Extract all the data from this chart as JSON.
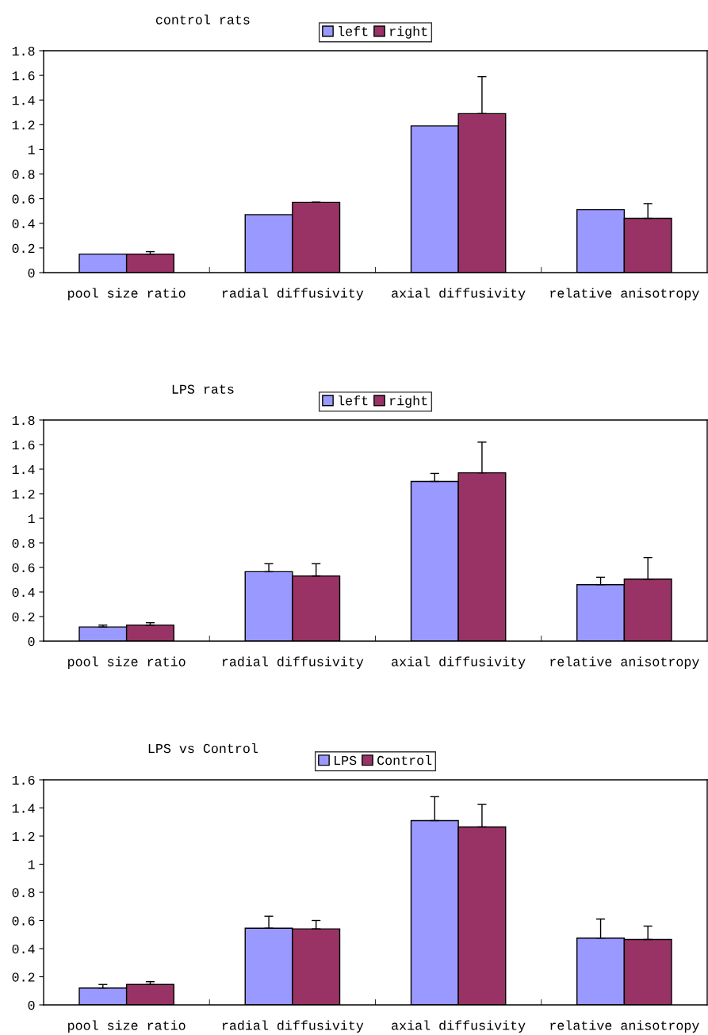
{
  "chart_data": [
    {
      "type": "bar",
      "title": "control rats",
      "categories": [
        "pool size ratio",
        "radial diffusivity",
        "axial diffusivity",
        "relative anisotropy"
      ],
      "ylim": [
        0,
        1.8
      ],
      "yticks": [
        0,
        0.2,
        0.4,
        0.6,
        0.8,
        1,
        1.2,
        1.4,
        1.6,
        1.8
      ],
      "grid": false,
      "legend": "top",
      "series": [
        {
          "name": "left",
          "color": "#9999ff",
          "values": [
            0.15,
            0.47,
            1.19,
            0.51
          ]
        },
        {
          "name": "right",
          "color": "#993366",
          "values": [
            0.15,
            0.57,
            1.29,
            0.44
          ],
          "errors": [
            [
              0.15,
              0.17
            ],
            [
              0.57,
              0.57
            ],
            [
              1.29,
              1.59
            ],
            [
              0.44,
              0.56
            ]
          ]
        }
      ]
    },
    {
      "type": "bar",
      "title": "LPS rats",
      "categories": [
        "pool size ratio",
        "radial diffusivity",
        "axial diffusivity",
        "relative anisotropy"
      ],
      "ylim": [
        0,
        1.8
      ],
      "yticks": [
        0,
        0.2,
        0.4,
        0.6,
        0.8,
        1,
        1.2,
        1.4,
        1.6,
        1.8
      ],
      "grid": false,
      "legend": "top",
      "series": [
        {
          "name": "left",
          "color": "#9999ff",
          "values": [
            0.115,
            0.565,
            1.3,
            0.46
          ],
          "errors": [
            [
              0.115,
              0.13
            ],
            [
              0.565,
              0.63
            ],
            [
              1.3,
              1.365
            ],
            [
              0.46,
              0.52
            ]
          ]
        },
        {
          "name": "right",
          "color": "#993366",
          "values": [
            0.13,
            0.53,
            1.37,
            0.505
          ],
          "errors": [
            [
              0.13,
              0.15
            ],
            [
              0.53,
              0.63
            ],
            [
              1.37,
              1.62
            ],
            [
              0.505,
              0.68
            ]
          ]
        }
      ]
    },
    {
      "type": "bar",
      "title": "LPS vs Control",
      "categories": [
        "pool size ratio",
        "radial diffusivity",
        "axial diffusivity",
        "relative anisotropy"
      ],
      "ylim": [
        0,
        1.6
      ],
      "yticks": [
        0,
        0.2,
        0.4,
        0.6,
        0.8,
        1,
        1.2,
        1.4,
        1.6
      ],
      "grid": false,
      "legend": "top",
      "series": [
        {
          "name": "LPS",
          "color": "#9999ff",
          "values": [
            0.12,
            0.545,
            1.31,
            0.475
          ],
          "errors": [
            [
              0.12,
              0.145
            ],
            [
              0.545,
              0.63
            ],
            [
              1.31,
              1.48
            ],
            [
              0.475,
              0.61
            ]
          ]
        },
        {
          "name": "Control",
          "color": "#993366",
          "values": [
            0.145,
            0.54,
            1.265,
            0.465
          ],
          "errors": [
            [
              0.145,
              0.165
            ],
            [
              0.54,
              0.6
            ],
            [
              1.265,
              1.425
            ],
            [
              0.465,
              0.56
            ]
          ]
        }
      ]
    }
  ]
}
